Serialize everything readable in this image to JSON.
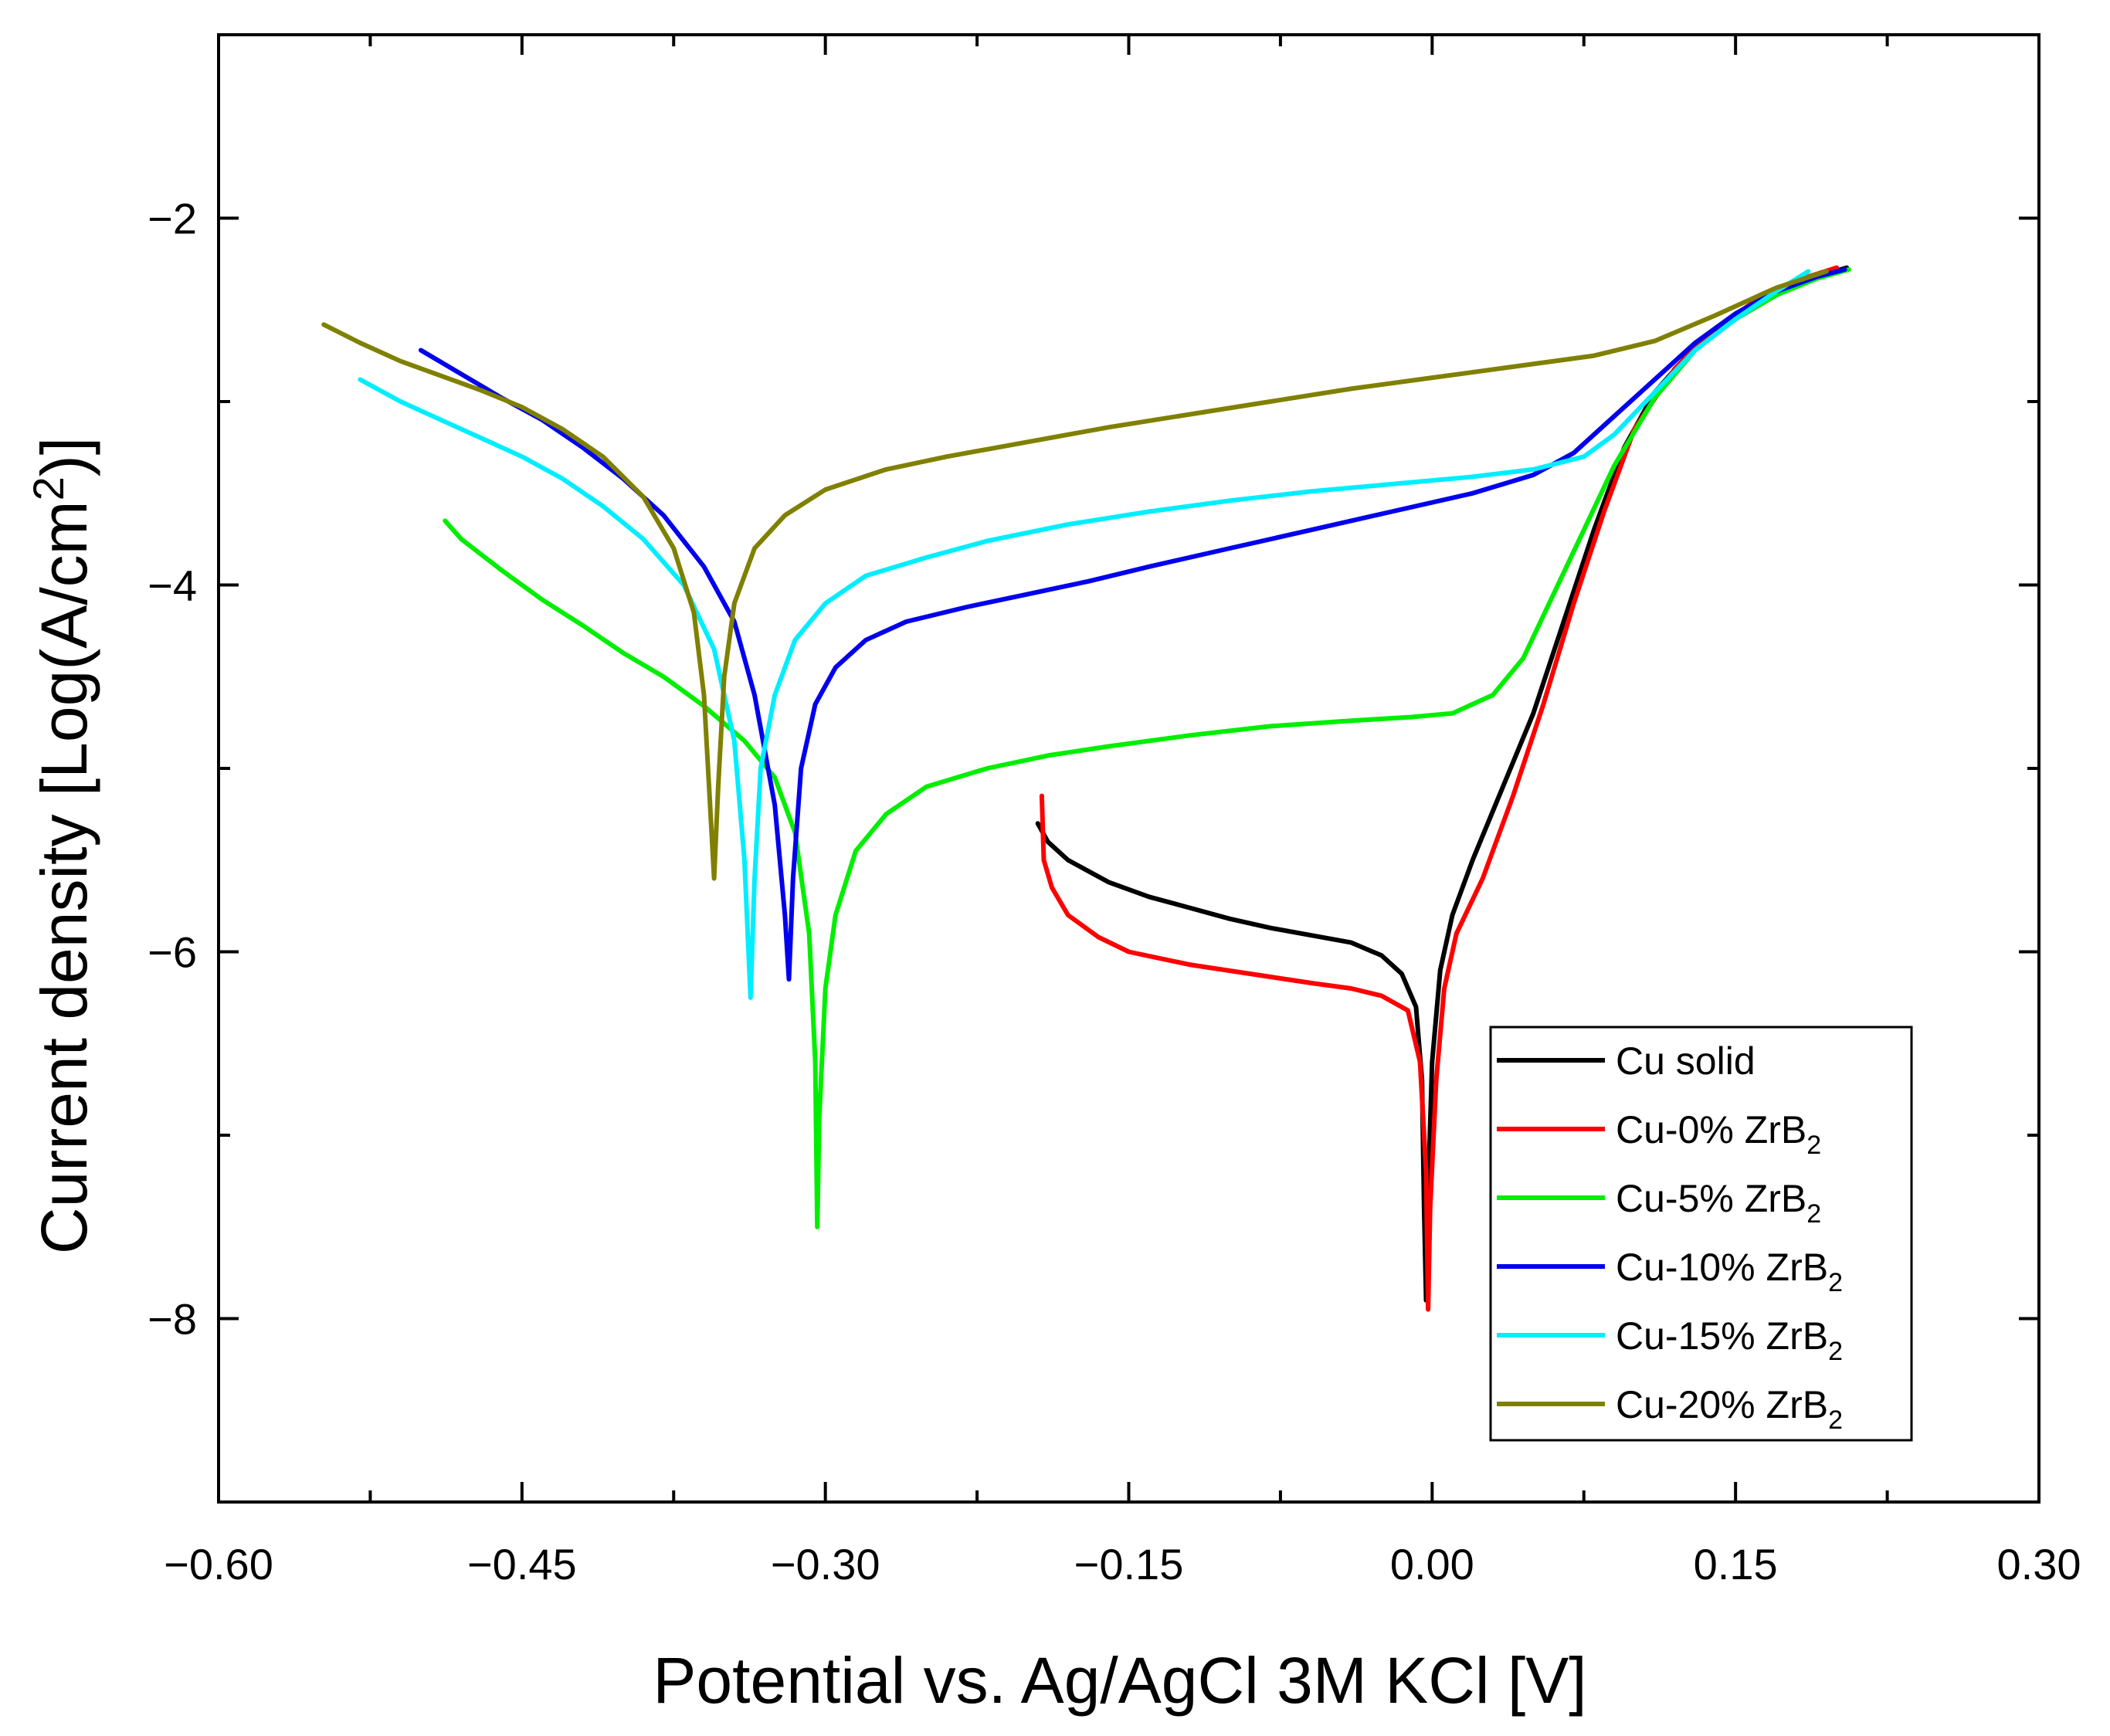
{
  "chart_data": {
    "type": "line",
    "title": "",
    "xlabel": "Potential vs. Ag/AgCl 3M KCl [V]",
    "ylabel": {
      "main": "Current density [Log(A/cm",
      "sup": "2",
      "tail": ")]"
    },
    "xlim": [
      -0.6,
      0.3
    ],
    "ylim": [
      -9.0,
      -1.0
    ],
    "xticks": [
      -0.6,
      -0.45,
      -0.3,
      -0.15,
      0.0,
      0.15,
      0.3
    ],
    "xtick_labels": [
      "−0.60",
      "−0.45",
      "−0.30",
      "−0.15",
      "0.00",
      "0.15",
      "0.30"
    ],
    "yticks": [
      -2,
      -4,
      -6,
      -8
    ],
    "ytick_labels": [
      "−2",
      "−4",
      "−6",
      "−8"
    ],
    "legend_position": "bottom-right",
    "series": [
      {
        "name": "Cu solid",
        "label_main": "Cu solid",
        "label_sub": "",
        "color": "#000000",
        "points": [
          [
            -0.195,
            -5.3
          ],
          [
            -0.19,
            -5.4
          ],
          [
            -0.18,
            -5.5
          ],
          [
            -0.16,
            -5.62
          ],
          [
            -0.14,
            -5.7
          ],
          [
            -0.12,
            -5.76
          ],
          [
            -0.1,
            -5.82
          ],
          [
            -0.08,
            -5.87
          ],
          [
            -0.06,
            -5.91
          ],
          [
            -0.04,
            -5.95
          ],
          [
            -0.025,
            -6.02
          ],
          [
            -0.015,
            -6.12
          ],
          [
            -0.008,
            -6.3
          ],
          [
            -0.005,
            -6.7
          ],
          [
            -0.004,
            -7.4
          ],
          [
            -0.003,
            -7.9
          ],
          [
            -0.002,
            -7.3
          ],
          [
            0.0,
            -6.6
          ],
          [
            0.004,
            -6.1
          ],
          [
            0.01,
            -5.8
          ],
          [
            0.02,
            -5.5
          ],
          [
            0.035,
            -5.1
          ],
          [
            0.05,
            -4.7
          ],
          [
            0.065,
            -4.2
          ],
          [
            0.08,
            -3.7
          ],
          [
            0.095,
            -3.25
          ],
          [
            0.11,
            -2.95
          ],
          [
            0.13,
            -2.7
          ],
          [
            0.15,
            -2.55
          ],
          [
            0.17,
            -2.42
          ],
          [
            0.19,
            -2.32
          ],
          [
            0.205,
            -2.27
          ]
        ]
      },
      {
        "name": "Cu-0% ZrB2",
        "label_main": "Cu-0% ZrB",
        "label_sub": "2",
        "color": "#ff0000",
        "points": [
          [
            -0.193,
            -5.15
          ],
          [
            -0.192,
            -5.5
          ],
          [
            -0.188,
            -5.65
          ],
          [
            -0.18,
            -5.8
          ],
          [
            -0.165,
            -5.92
          ],
          [
            -0.15,
            -6.0
          ],
          [
            -0.12,
            -6.07
          ],
          [
            -0.09,
            -6.12
          ],
          [
            -0.06,
            -6.17
          ],
          [
            -0.04,
            -6.2
          ],
          [
            -0.025,
            -6.24
          ],
          [
            -0.012,
            -6.32
          ],
          [
            -0.006,
            -6.6
          ],
          [
            -0.003,
            -7.2
          ],
          [
            -0.002,
            -7.95
          ],
          [
            -0.001,
            -7.4
          ],
          [
            0.002,
            -6.7
          ],
          [
            0.006,
            -6.2
          ],
          [
            0.012,
            -5.9
          ],
          [
            0.025,
            -5.6
          ],
          [
            0.04,
            -5.15
          ],
          [
            0.055,
            -4.65
          ],
          [
            0.07,
            -4.1
          ],
          [
            0.085,
            -3.6
          ],
          [
            0.1,
            -3.15
          ],
          [
            0.12,
            -2.82
          ],
          [
            0.14,
            -2.6
          ],
          [
            0.16,
            -2.45
          ],
          [
            0.18,
            -2.34
          ],
          [
            0.2,
            -2.27
          ]
        ]
      },
      {
        "name": "Cu-5% ZrB2",
        "label_main": "Cu-5% ZrB",
        "label_sub": "2",
        "color": "#00ee00",
        "points": [
          [
            -0.488,
            -3.65
          ],
          [
            -0.48,
            -3.75
          ],
          [
            -0.46,
            -3.92
          ],
          [
            -0.44,
            -4.08
          ],
          [
            -0.42,
            -4.22
          ],
          [
            -0.4,
            -4.37
          ],
          [
            -0.38,
            -4.5
          ],
          [
            -0.36,
            -4.66
          ],
          [
            -0.34,
            -4.85
          ],
          [
            -0.325,
            -5.05
          ],
          [
            -0.315,
            -5.35
          ],
          [
            -0.308,
            -5.9
          ],
          [
            -0.305,
            -6.6
          ],
          [
            -0.304,
            -7.5
          ],
          [
            -0.303,
            -6.9
          ],
          [
            -0.3,
            -6.2
          ],
          [
            -0.295,
            -5.8
          ],
          [
            -0.285,
            -5.45
          ],
          [
            -0.27,
            -5.25
          ],
          [
            -0.25,
            -5.1
          ],
          [
            -0.22,
            -5.0
          ],
          [
            -0.19,
            -4.93
          ],
          [
            -0.16,
            -4.88
          ],
          [
            -0.12,
            -4.82
          ],
          [
            -0.08,
            -4.77
          ],
          [
            -0.04,
            -4.74
          ],
          [
            -0.01,
            -4.72
          ],
          [
            0.01,
            -4.7
          ],
          [
            0.03,
            -4.6
          ],
          [
            0.045,
            -4.4
          ],
          [
            0.06,
            -4.05
          ],
          [
            0.075,
            -3.7
          ],
          [
            0.09,
            -3.35
          ],
          [
            0.11,
            -2.98
          ],
          [
            0.13,
            -2.72
          ],
          [
            0.15,
            -2.55
          ],
          [
            0.17,
            -2.42
          ],
          [
            0.19,
            -2.33
          ],
          [
            0.206,
            -2.28
          ]
        ]
      },
      {
        "name": "Cu-10% ZrB2",
        "label_main": "Cu-10% ZrB",
        "label_sub": "2",
        "color": "#0000ee",
        "points": [
          [
            -0.5,
            -2.72
          ],
          [
            -0.48,
            -2.85
          ],
          [
            -0.46,
            -2.98
          ],
          [
            -0.44,
            -3.1
          ],
          [
            -0.42,
            -3.25
          ],
          [
            -0.4,
            -3.42
          ],
          [
            -0.38,
            -3.62
          ],
          [
            -0.36,
            -3.9
          ],
          [
            -0.345,
            -4.2
          ],
          [
            -0.335,
            -4.6
          ],
          [
            -0.325,
            -5.2
          ],
          [
            -0.32,
            -5.8
          ],
          [
            -0.318,
            -6.15
          ],
          [
            -0.316,
            -5.6
          ],
          [
            -0.312,
            -5.0
          ],
          [
            -0.305,
            -4.65
          ],
          [
            -0.295,
            -4.45
          ],
          [
            -0.28,
            -4.3
          ],
          [
            -0.26,
            -4.2
          ],
          [
            -0.23,
            -4.12
          ],
          [
            -0.2,
            -4.05
          ],
          [
            -0.17,
            -3.98
          ],
          [
            -0.14,
            -3.9
          ],
          [
            -0.1,
            -3.8
          ],
          [
            -0.06,
            -3.7
          ],
          [
            -0.02,
            -3.6
          ],
          [
            0.02,
            -3.5
          ],
          [
            0.05,
            -3.4
          ],
          [
            0.07,
            -3.28
          ],
          [
            0.09,
            -3.08
          ],
          [
            0.11,
            -2.88
          ],
          [
            0.13,
            -2.68
          ],
          [
            0.15,
            -2.52
          ],
          [
            0.17,
            -2.4
          ],
          [
            0.19,
            -2.32
          ],
          [
            0.204,
            -2.28
          ]
        ]
      },
      {
        "name": "Cu-15% ZrB2",
        "label_main": "Cu-15% ZrB",
        "label_sub": "2",
        "color": "#00eeff",
        "points": [
          [
            -0.53,
            -2.88
          ],
          [
            -0.51,
            -3.0
          ],
          [
            -0.49,
            -3.1
          ],
          [
            -0.47,
            -3.2
          ],
          [
            -0.45,
            -3.3
          ],
          [
            -0.43,
            -3.42
          ],
          [
            -0.41,
            -3.57
          ],
          [
            -0.39,
            -3.75
          ],
          [
            -0.37,
            -4.0
          ],
          [
            -0.355,
            -4.35
          ],
          [
            -0.345,
            -4.85
          ],
          [
            -0.34,
            -5.5
          ],
          [
            -0.337,
            -6.25
          ],
          [
            -0.335,
            -5.6
          ],
          [
            -0.332,
            -5.0
          ],
          [
            -0.325,
            -4.6
          ],
          [
            -0.315,
            -4.3
          ],
          [
            -0.3,
            -4.1
          ],
          [
            -0.28,
            -3.95
          ],
          [
            -0.25,
            -3.85
          ],
          [
            -0.22,
            -3.76
          ],
          [
            -0.18,
            -3.67
          ],
          [
            -0.14,
            -3.6
          ],
          [
            -0.1,
            -3.54
          ],
          [
            -0.06,
            -3.49
          ],
          [
            -0.02,
            -3.45
          ],
          [
            0.02,
            -3.41
          ],
          [
            0.05,
            -3.37
          ],
          [
            0.075,
            -3.3
          ],
          [
            0.09,
            -3.18
          ],
          [
            0.11,
            -2.95
          ],
          [
            0.13,
            -2.72
          ],
          [
            0.15,
            -2.55
          ],
          [
            0.17,
            -2.4
          ],
          [
            0.186,
            -2.29
          ]
        ]
      },
      {
        "name": "Cu-20% ZrB2",
        "label_main": "Cu-20% ZrB",
        "label_sub": "2",
        "color": "#808000",
        "points": [
          [
            -0.548,
            -2.58
          ],
          [
            -0.53,
            -2.68
          ],
          [
            -0.51,
            -2.78
          ],
          [
            -0.49,
            -2.86
          ],
          [
            -0.47,
            -2.94
          ],
          [
            -0.45,
            -3.03
          ],
          [
            -0.43,
            -3.15
          ],
          [
            -0.41,
            -3.3
          ],
          [
            -0.39,
            -3.52
          ],
          [
            -0.375,
            -3.8
          ],
          [
            -0.365,
            -4.15
          ],
          [
            -0.36,
            -4.6
          ],
          [
            -0.357,
            -5.2
          ],
          [
            -0.355,
            -5.6
          ],
          [
            -0.353,
            -5.1
          ],
          [
            -0.35,
            -4.5
          ],
          [
            -0.345,
            -4.1
          ],
          [
            -0.335,
            -3.8
          ],
          [
            -0.32,
            -3.62
          ],
          [
            -0.3,
            -3.48
          ],
          [
            -0.27,
            -3.37
          ],
          [
            -0.24,
            -3.3
          ],
          [
            -0.2,
            -3.22
          ],
          [
            -0.16,
            -3.14
          ],
          [
            -0.12,
            -3.07
          ],
          [
            -0.08,
            -3.0
          ],
          [
            -0.04,
            -2.93
          ],
          [
            0.0,
            -2.87
          ],
          [
            0.04,
            -2.81
          ],
          [
            0.08,
            -2.75
          ],
          [
            0.11,
            -2.67
          ],
          [
            0.14,
            -2.53
          ],
          [
            0.17,
            -2.38
          ],
          [
            0.195,
            -2.29
          ]
        ]
      }
    ]
  }
}
